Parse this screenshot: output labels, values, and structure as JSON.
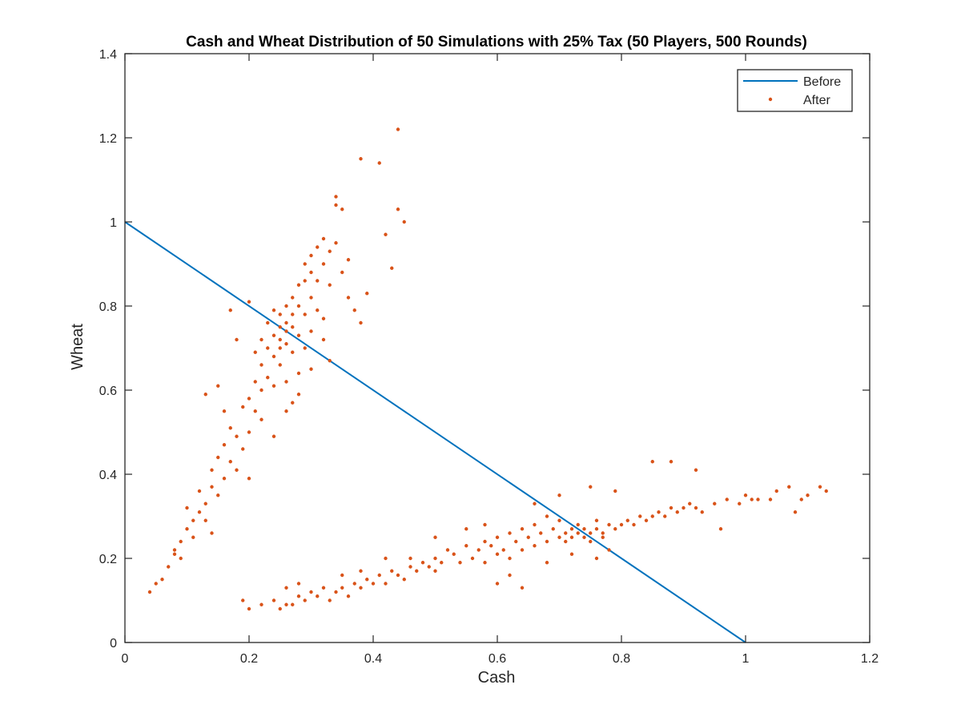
{
  "chart_data": {
    "type": "scatter",
    "title": "Cash and Wheat Distribution of 50 Simulations with 25% Tax (50 Players, 500 Rounds)",
    "xlabel": "Cash",
    "ylabel": "Wheat",
    "xlim": [
      0,
      1.2
    ],
    "ylim": [
      0,
      1.4
    ],
    "xticks": [
      "0",
      "0.2",
      "0.4",
      "0.6",
      "0.8",
      "1",
      "1.2"
    ],
    "yticks": [
      "0",
      "0.2",
      "0.4",
      "0.6",
      "0.8",
      "1",
      "1.2",
      "1.4"
    ],
    "grid": false,
    "legend_position": "top-right",
    "colors": {
      "before": "#0072BD",
      "after": "#D95319"
    },
    "series": [
      {
        "name": "Before",
        "kind": "line",
        "x": [
          0,
          1
        ],
        "y": [
          1,
          0
        ]
      },
      {
        "name": "After",
        "kind": "scatter",
        "points": [
          [
            0.04,
            0.12
          ],
          [
            0.05,
            0.14
          ],
          [
            0.06,
            0.15
          ],
          [
            0.07,
            0.18
          ],
          [
            0.08,
            0.21
          ],
          [
            0.08,
            0.22
          ],
          [
            0.09,
            0.2
          ],
          [
            0.09,
            0.24
          ],
          [
            0.1,
            0.27
          ],
          [
            0.11,
            0.29
          ],
          [
            0.11,
            0.25
          ],
          [
            0.12,
            0.31
          ],
          [
            0.13,
            0.33
          ],
          [
            0.13,
            0.29
          ],
          [
            0.14,
            0.37
          ],
          [
            0.14,
            0.41
          ],
          [
            0.15,
            0.35
          ],
          [
            0.15,
            0.44
          ],
          [
            0.16,
            0.39
          ],
          [
            0.16,
            0.47
          ],
          [
            0.17,
            0.43
          ],
          [
            0.17,
            0.51
          ],
          [
            0.18,
            0.49
          ],
          [
            0.18,
            0.41
          ],
          [
            0.19,
            0.56
          ],
          [
            0.19,
            0.46
          ],
          [
            0.2,
            0.58
          ],
          [
            0.2,
            0.5
          ],
          [
            0.2,
            0.39
          ],
          [
            0.21,
            0.62
          ],
          [
            0.21,
            0.55
          ],
          [
            0.21,
            0.69
          ],
          [
            0.22,
            0.66
          ],
          [
            0.22,
            0.6
          ],
          [
            0.22,
            0.72
          ],
          [
            0.23,
            0.7
          ],
          [
            0.23,
            0.63
          ],
          [
            0.23,
            0.76
          ],
          [
            0.24,
            0.73
          ],
          [
            0.24,
            0.68
          ],
          [
            0.24,
            0.79
          ],
          [
            0.24,
            0.61
          ],
          [
            0.25,
            0.75
          ],
          [
            0.25,
            0.72
          ],
          [
            0.25,
            0.7
          ],
          [
            0.25,
            0.78
          ],
          [
            0.25,
            0.66
          ],
          [
            0.26,
            0.76
          ],
          [
            0.26,
            0.74
          ],
          [
            0.26,
            0.8
          ],
          [
            0.26,
            0.71
          ],
          [
            0.26,
            0.62
          ],
          [
            0.27,
            0.78
          ],
          [
            0.27,
            0.75
          ],
          [
            0.27,
            0.82
          ],
          [
            0.27,
            0.69
          ],
          [
            0.27,
            0.57
          ],
          [
            0.28,
            0.8
          ],
          [
            0.28,
            0.85
          ],
          [
            0.28,
            0.73
          ],
          [
            0.28,
            0.64
          ],
          [
            0.29,
            0.86
          ],
          [
            0.29,
            0.78
          ],
          [
            0.29,
            0.9
          ],
          [
            0.29,
            0.7
          ],
          [
            0.3,
            0.88
          ],
          [
            0.3,
            0.82
          ],
          [
            0.3,
            0.92
          ],
          [
            0.3,
            0.74
          ],
          [
            0.31,
            0.94
          ],
          [
            0.31,
            0.86
          ],
          [
            0.31,
            0.79
          ],
          [
            0.32,
            0.9
          ],
          [
            0.32,
            0.96
          ],
          [
            0.32,
            0.72
          ],
          [
            0.33,
            0.93
          ],
          [
            0.33,
            0.85
          ],
          [
            0.33,
            0.67
          ],
          [
            0.34,
            1.04
          ],
          [
            0.34,
            1.06
          ],
          [
            0.34,
            0.95
          ],
          [
            0.35,
            1.03
          ],
          [
            0.35,
            0.88
          ],
          [
            0.36,
            0.91
          ],
          [
            0.36,
            0.82
          ],
          [
            0.37,
            0.79
          ],
          [
            0.38,
            1.15
          ],
          [
            0.38,
            0.76
          ],
          [
            0.39,
            0.83
          ],
          [
            0.41,
            1.14
          ],
          [
            0.42,
            0.97
          ],
          [
            0.43,
            0.89
          ],
          [
            0.44,
            1.22
          ],
          [
            0.44,
            1.03
          ],
          [
            0.45,
            1.0
          ],
          [
            0.17,
            0.79
          ],
          [
            0.18,
            0.72
          ],
          [
            0.2,
            0.81
          ],
          [
            0.22,
            0.53
          ],
          [
            0.24,
            0.49
          ],
          [
            0.26,
            0.55
          ],
          [
            0.28,
            0.59
          ],
          [
            0.3,
            0.65
          ],
          [
            0.32,
            0.77
          ],
          [
            0.13,
            0.59
          ],
          [
            0.15,
            0.61
          ],
          [
            0.16,
            0.55
          ],
          [
            0.12,
            0.36
          ],
          [
            0.1,
            0.32
          ],
          [
            0.14,
            0.26
          ],
          [
            0.19,
            0.1
          ],
          [
            0.2,
            0.08
          ],
          [
            0.22,
            0.09
          ],
          [
            0.24,
            0.1
          ],
          [
            0.25,
            0.08
          ],
          [
            0.26,
            0.09
          ],
          [
            0.27,
            0.09
          ],
          [
            0.28,
            0.11
          ],
          [
            0.29,
            0.1
          ],
          [
            0.3,
            0.12
          ],
          [
            0.31,
            0.11
          ],
          [
            0.32,
            0.13
          ],
          [
            0.33,
            0.1
          ],
          [
            0.34,
            0.12
          ],
          [
            0.35,
            0.13
          ],
          [
            0.36,
            0.11
          ],
          [
            0.37,
            0.14
          ],
          [
            0.38,
            0.13
          ],
          [
            0.39,
            0.15
          ],
          [
            0.4,
            0.14
          ],
          [
            0.41,
            0.16
          ],
          [
            0.42,
            0.14
          ],
          [
            0.43,
            0.17
          ],
          [
            0.44,
            0.16
          ],
          [
            0.45,
            0.15
          ],
          [
            0.46,
            0.18
          ],
          [
            0.47,
            0.17
          ],
          [
            0.48,
            0.19
          ],
          [
            0.49,
            0.18
          ],
          [
            0.5,
            0.2
          ],
          [
            0.5,
            0.17
          ],
          [
            0.51,
            0.19
          ],
          [
            0.52,
            0.22
          ],
          [
            0.53,
            0.21
          ],
          [
            0.54,
            0.19
          ],
          [
            0.55,
            0.23
          ],
          [
            0.56,
            0.2
          ],
          [
            0.57,
            0.22
          ],
          [
            0.58,
            0.24
          ],
          [
            0.58,
            0.19
          ],
          [
            0.59,
            0.23
          ],
          [
            0.6,
            0.25
          ],
          [
            0.6,
            0.21
          ],
          [
            0.61,
            0.22
          ],
          [
            0.62,
            0.26
          ],
          [
            0.62,
            0.2
          ],
          [
            0.63,
            0.24
          ],
          [
            0.64,
            0.27
          ],
          [
            0.64,
            0.22
          ],
          [
            0.65,
            0.25
          ],
          [
            0.66,
            0.23
          ],
          [
            0.66,
            0.28
          ],
          [
            0.67,
            0.26
          ],
          [
            0.68,
            0.24
          ],
          [
            0.68,
            0.3
          ],
          [
            0.69,
            0.27
          ],
          [
            0.7,
            0.25
          ],
          [
            0.7,
            0.29
          ],
          [
            0.71,
            0.26
          ],
          [
            0.71,
            0.24
          ],
          [
            0.72,
            0.27
          ],
          [
            0.72,
            0.25
          ],
          [
            0.73,
            0.26
          ],
          [
            0.73,
            0.28
          ],
          [
            0.74,
            0.25
          ],
          [
            0.74,
            0.27
          ],
          [
            0.75,
            0.26
          ],
          [
            0.75,
            0.24
          ],
          [
            0.76,
            0.27
          ],
          [
            0.76,
            0.29
          ],
          [
            0.77,
            0.26
          ],
          [
            0.77,
            0.25
          ],
          [
            0.78,
            0.28
          ],
          [
            0.79,
            0.27
          ],
          [
            0.8,
            0.28
          ],
          [
            0.81,
            0.29
          ],
          [
            0.82,
            0.28
          ],
          [
            0.83,
            0.3
          ],
          [
            0.84,
            0.29
          ],
          [
            0.85,
            0.3
          ],
          [
            0.86,
            0.31
          ],
          [
            0.87,
            0.3
          ],
          [
            0.88,
            0.32
          ],
          [
            0.89,
            0.31
          ],
          [
            0.9,
            0.32
          ],
          [
            0.91,
            0.33
          ],
          [
            0.92,
            0.32
          ],
          [
            0.93,
            0.31
          ],
          [
            0.95,
            0.33
          ],
          [
            0.97,
            0.34
          ],
          [
            0.99,
            0.33
          ],
          [
            1.0,
            0.35
          ],
          [
            1.01,
            0.34
          ],
          [
            1.02,
            0.34
          ],
          [
            1.04,
            0.34
          ],
          [
            1.05,
            0.36
          ],
          [
            1.07,
            0.37
          ],
          [
            1.09,
            0.34
          ],
          [
            1.1,
            0.35
          ],
          [
            1.12,
            0.37
          ],
          [
            1.13,
            0.36
          ],
          [
            1.08,
            0.31
          ],
          [
            0.96,
            0.27
          ],
          [
            0.85,
            0.43
          ],
          [
            0.88,
            0.43
          ],
          [
            0.92,
            0.41
          ],
          [
            0.75,
            0.37
          ],
          [
            0.7,
            0.35
          ],
          [
            0.79,
            0.36
          ],
          [
            0.66,
            0.33
          ],
          [
            0.72,
            0.21
          ],
          [
            0.76,
            0.2
          ],
          [
            0.78,
            0.22
          ],
          [
            0.68,
            0.19
          ],
          [
            0.62,
            0.16
          ],
          [
            0.6,
            0.14
          ],
          [
            0.64,
            0.13
          ],
          [
            0.55,
            0.27
          ],
          [
            0.58,
            0.28
          ],
          [
            0.5,
            0.25
          ],
          [
            0.46,
            0.2
          ],
          [
            0.42,
            0.2
          ],
          [
            0.38,
            0.17
          ],
          [
            0.28,
            0.14
          ],
          [
            0.26,
            0.13
          ],
          [
            0.35,
            0.16
          ]
        ]
      }
    ]
  }
}
